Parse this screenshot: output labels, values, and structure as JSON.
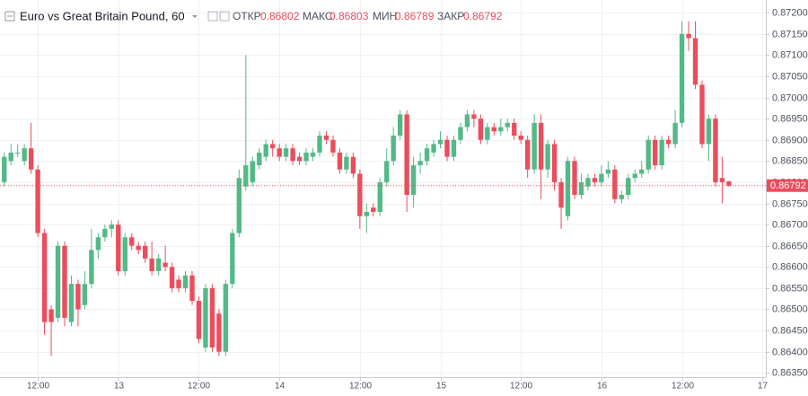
{
  "chart_data": {
    "type": "candlestick",
    "title": "Euro vs Great Britain Pound, 60",
    "ohlc_labels": [
      "ОТКР",
      "МАКС",
      "МИН",
      "ЗАКР"
    ],
    "up_color": "#53b987",
    "down_color": "#eb4d5c",
    "grid": true,
    "categories": [
      null,
      null,
      null,
      null,
      null,
      "12:00",
      null,
      null,
      null,
      null,
      null,
      null,
      null,
      null,
      null,
      null,
      null,
      "13",
      null,
      null,
      null,
      null,
      null,
      null,
      null,
      null,
      null,
      null,
      null,
      "12:00",
      null,
      null,
      null,
      null,
      null,
      null,
      null,
      null,
      null,
      null,
      null,
      "14",
      null,
      null,
      null,
      null,
      null,
      null,
      null,
      null,
      null,
      null,
      null,
      "12:00",
      null,
      null,
      null,
      null,
      null,
      null,
      null,
      null,
      null,
      null,
      null,
      "15",
      null,
      null,
      null,
      null,
      null,
      null,
      null,
      null,
      null,
      null,
      null,
      "12:00",
      null,
      null,
      null,
      null,
      null,
      null,
      null,
      null,
      null,
      null,
      null,
      "16",
      null,
      null,
      null,
      null,
      null,
      null,
      null,
      null,
      null,
      null,
      null,
      "12:00",
      null,
      null,
      null,
      null,
      null,
      null,
      null,
      null,
      null,
      null,
      null,
      "17"
    ],
    "open": [
      0.868,
      0.8685,
      0.8687,
      0.8685,
      0.8688,
      0.8683,
      0.8668,
      0.865,
      0.8648,
      0.8665,
      0.8647,
      0.8656,
      0.8651,
      0.8656,
      0.8664,
      0.8667,
      0.8669,
      0.867,
      0.8659,
      0.8667,
      0.8665,
      0.8665,
      0.8662,
      0.8659,
      0.8661,
      0.866,
      0.8657,
      0.8655,
      0.8658,
      0.8652,
      0.8641,
      0.8655,
      0.8649,
      0.864,
      0.8656,
      0.8668,
      0.8679,
      0.868,
      0.8684,
      0.8686,
      0.8689,
      0.8688,
      0.8686,
      0.8688,
      0.8686,
      0.8685,
      0.8686,
      0.8687,
      0.8691,
      0.869,
      0.8687,
      0.8683,
      0.8686,
      0.8682,
      0.8672,
      0.8674,
      0.8673,
      0.868,
      0.8685,
      0.8691,
      0.8696,
      0.8677,
      0.8684,
      0.8685,
      0.8687,
      0.8689,
      0.869,
      0.8686,
      0.869,
      0.8693,
      0.8696,
      0.8695,
      0.869,
      0.8693,
      0.8692,
      0.8693,
      0.8694,
      0.8691,
      0.869,
      0.8683,
      0.8694,
      0.8683,
      0.8689,
      0.868,
      0.8672,
      0.8685,
      0.8677,
      0.8679,
      0.8681,
      0.868,
      0.8682,
      0.8683,
      0.8676,
      0.8677,
      0.8681,
      0.8682,
      0.8683,
      0.869,
      0.8684,
      0.869,
      0.8689,
      0.8694,
      0.8715,
      0.8714,
      0.8703,
      0.8689,
      0.8695,
      0.8681,
      0.86802,
      null,
      null,
      null,
      null,
      null
    ],
    "high": [
      0.8687,
      0.8689,
      0.8689,
      0.8689,
      0.8694,
      0.8684,
      0.8669,
      0.8651,
      0.8666,
      0.8666,
      0.8658,
      0.8657,
      0.8659,
      0.8669,
      0.8668,
      0.867,
      0.8671,
      0.8671,
      0.8668,
      0.8668,
      0.8666,
      0.8666,
      0.8666,
      0.8663,
      0.8665,
      0.8661,
      0.8658,
      0.8659,
      0.8659,
      0.8653,
      0.8656,
      0.8656,
      0.865,
      0.8657,
      0.8669,
      0.8683,
      0.871,
      0.8686,
      0.8688,
      0.869,
      0.869,
      0.8689,
      0.8689,
      0.8689,
      0.8687,
      0.8688,
      0.8688,
      0.8692,
      0.8692,
      0.8691,
      0.8688,
      0.8687,
      0.8687,
      0.8683,
      0.8675,
      0.8675,
      0.8681,
      0.8688,
      0.8693,
      0.8697,
      0.8697,
      0.8686,
      0.8687,
      0.8689,
      0.869,
      0.8692,
      0.8691,
      0.8691,
      0.8694,
      0.8697,
      0.8697,
      0.8696,
      0.8694,
      0.8694,
      0.8695,
      0.8695,
      0.8695,
      0.8692,
      0.8691,
      0.8696,
      0.8696,
      0.869,
      0.869,
      0.8681,
      0.8686,
      0.8686,
      0.8682,
      0.8682,
      0.8682,
      0.8684,
      0.8685,
      0.8684,
      0.8678,
      0.8682,
      0.8683,
      0.8685,
      0.8691,
      0.8691,
      0.8691,
      0.8691,
      0.8697,
      0.8718,
      0.8718,
      0.8718,
      0.8704,
      0.8696,
      0.8696,
      0.8686,
      0.86803,
      null,
      null,
      null,
      null,
      null
    ],
    "low": [
      0.8679,
      0.8684,
      0.8686,
      0.8684,
      0.8682,
      0.8667,
      0.8644,
      0.8639,
      0.8647,
      0.8646,
      0.8646,
      0.8646,
      0.865,
      0.8655,
      0.8662,
      0.8666,
      0.8667,
      0.8658,
      0.8658,
      0.8664,
      0.8663,
      0.8661,
      0.8658,
      0.8658,
      0.8659,
      0.8654,
      0.8654,
      0.8654,
      0.8651,
      0.8642,
      0.864,
      0.864,
      0.8639,
      0.8639,
      0.8655,
      0.8667,
      0.8678,
      0.8679,
      0.8683,
      0.8685,
      0.8686,
      0.8685,
      0.8685,
      0.8684,
      0.8684,
      0.8684,
      0.8685,
      0.8686,
      0.8689,
      0.8686,
      0.8682,
      0.8682,
      0.8681,
      0.8669,
      0.8668,
      0.8672,
      0.8672,
      0.8679,
      0.8684,
      0.869,
      0.8673,
      0.8674,
      0.8682,
      0.8684,
      0.8686,
      0.8688,
      0.8685,
      0.8685,
      0.8689,
      0.8692,
      0.8693,
      0.8689,
      0.8689,
      0.8691,
      0.8691,
      0.8692,
      0.869,
      0.8689,
      0.8681,
      0.8682,
      0.8676,
      0.8681,
      0.8678,
      0.8669,
      0.8671,
      0.8676,
      0.8676,
      0.8678,
      0.8679,
      0.8679,
      0.8681,
      0.8675,
      0.8675,
      0.8676,
      0.868,
      0.8681,
      0.8682,
      0.8683,
      0.8683,
      0.8688,
      0.8688,
      0.8693,
      0.8711,
      0.8702,
      0.8688,
      0.8685,
      0.8679,
      0.8675,
      0.86789,
      null,
      null,
      null,
      null,
      null
    ],
    "close": [
      0.8686,
      0.8687,
      0.8687,
      0.8688,
      0.8683,
      0.8668,
      0.8647,
      0.8647,
      0.8665,
      0.8648,
      0.8656,
      0.865,
      0.8656,
      0.8664,
      0.8667,
      0.8669,
      0.867,
      0.8659,
      0.8667,
      0.8665,
      0.8664,
      0.8662,
      0.8659,
      0.8662,
      0.866,
      0.8655,
      0.8655,
      0.8658,
      0.8652,
      0.8643,
      0.8655,
      0.8641,
      0.864,
      0.8656,
      0.8668,
      0.8681,
      0.8684,
      0.8685,
      0.8687,
      0.8689,
      0.8688,
      0.8686,
      0.8688,
      0.8685,
      0.8685,
      0.8687,
      0.8687,
      0.8691,
      0.869,
      0.8687,
      0.8683,
      0.8686,
      0.8682,
      0.8672,
      0.8673,
      0.8673,
      0.868,
      0.8685,
      0.8691,
      0.8696,
      0.8677,
      0.8684,
      0.8685,
      0.8688,
      0.8689,
      0.869,
      0.8686,
      0.869,
      0.8693,
      0.8696,
      0.8695,
      0.869,
      0.8693,
      0.8692,
      0.8693,
      0.8694,
      0.8691,
      0.869,
      0.8683,
      0.8694,
      0.8683,
      0.8689,
      0.868,
      0.8674,
      0.8685,
      0.8677,
      0.868,
      0.8681,
      0.868,
      0.8682,
      0.8683,
      0.8676,
      0.8677,
      0.8681,
      0.8682,
      0.8683,
      0.869,
      0.8684,
      0.869,
      0.8689,
      0.8694,
      0.8715,
      0.8714,
      0.8703,
      0.8689,
      0.8695,
      0.868,
      0.868,
      0.86792,
      null,
      null,
      null,
      null,
      null
    ],
    "ylim": [
      0.8634,
      0.8723
    ],
    "yticks": [
      {
        "value": 0.8635,
        "label": "0.86350"
      },
      {
        "value": 0.864,
        "label": "0.86400"
      },
      {
        "value": 0.8645,
        "label": "0.86450"
      },
      {
        "value": 0.865,
        "label": "0.86500"
      },
      {
        "value": 0.8655,
        "label": "0.86550"
      },
      {
        "value": 0.866,
        "label": "0.86600"
      },
      {
        "value": 0.8665,
        "label": "0.86650"
      },
      {
        "value": 0.867,
        "label": "0.86700"
      },
      {
        "value": 0.8675,
        "label": "0.86750"
      },
      {
        "value": 0.868,
        "label": "0.86800"
      },
      {
        "value": 0.8685,
        "label": "0.86850"
      },
      {
        "value": 0.869,
        "label": "0.86900"
      },
      {
        "value": 0.8695,
        "label": "0.86950"
      },
      {
        "value": 0.87,
        "label": "0.87000"
      },
      {
        "value": 0.8705,
        "label": "0.87050"
      },
      {
        "value": 0.871,
        "label": "0.87100"
      },
      {
        "value": 0.8715,
        "label": "0.87150"
      },
      {
        "value": 0.872,
        "label": "0.87200"
      }
    ]
  }
}
